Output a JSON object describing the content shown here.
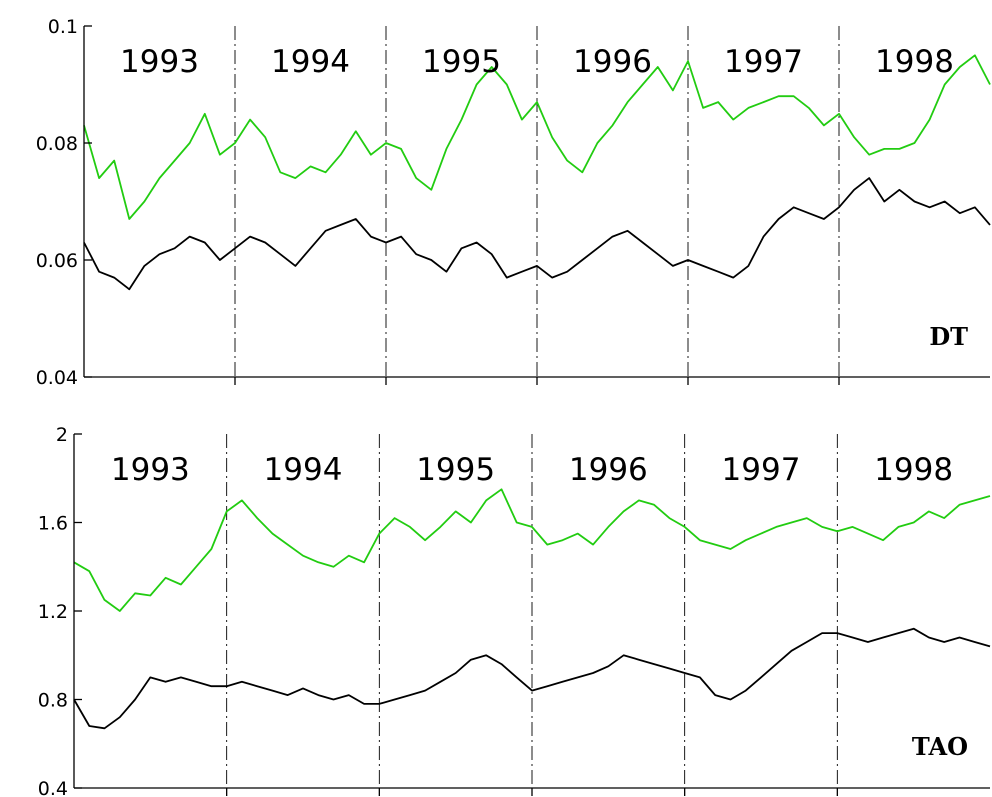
{
  "chart_data": [
    {
      "type": "line",
      "panel_label": "DT",
      "years": [
        "1993",
        "1994",
        "1995",
        "1996",
        "1997",
        "1998"
      ],
      "x_range": [
        1993,
        1999
      ],
      "year_dividers": [
        1994,
        1995,
        1996,
        1997,
        1998
      ],
      "ylim": [
        0.04,
        0.1
      ],
      "yticks": [
        0.04,
        0.06,
        0.08,
        0.1
      ],
      "ytick_labels": [
        "0.04",
        "0.06",
        "0.08",
        "0.1"
      ],
      "grid": false,
      "series": [
        {
          "color": "#22cc11",
          "x": [
            1993.0,
            1993.1,
            1993.2,
            1993.3,
            1993.4,
            1993.5,
            1993.6,
            1993.7,
            1993.8,
            1993.9,
            1994.0,
            1994.1,
            1994.2,
            1994.3,
            1994.4,
            1994.5,
            1994.6,
            1994.7,
            1994.8,
            1994.9,
            1995.0,
            1995.1,
            1995.2,
            1995.3,
            1995.4,
            1995.5,
            1995.6,
            1995.7,
            1995.8,
            1995.9,
            1996.0,
            1996.1,
            1996.2,
            1996.3,
            1996.4,
            1996.5,
            1996.6,
            1996.7,
            1996.8,
            1996.9,
            1997.0,
            1997.1,
            1997.2,
            1997.3,
            1997.4,
            1997.5,
            1997.6,
            1997.7,
            1997.8,
            1997.9,
            1998.0,
            1998.1,
            1998.2,
            1998.3,
            1998.4,
            1998.5,
            1998.6,
            1998.7,
            1998.8,
            1998.9,
            1999.0
          ],
          "y": [
            0.083,
            0.074,
            0.077,
            0.067,
            0.07,
            0.074,
            0.077,
            0.08,
            0.085,
            0.078,
            0.08,
            0.084,
            0.081,
            0.075,
            0.074,
            0.076,
            0.075,
            0.078,
            0.082,
            0.078,
            0.08,
            0.079,
            0.074,
            0.072,
            0.079,
            0.084,
            0.09,
            0.093,
            0.09,
            0.084,
            0.087,
            0.081,
            0.077,
            0.075,
            0.08,
            0.083,
            0.087,
            0.09,
            0.093,
            0.089,
            0.094,
            0.086,
            0.087,
            0.084,
            0.086,
            0.087,
            0.088,
            0.088,
            0.086,
            0.083,
            0.085,
            0.081,
            0.078,
            0.079,
            0.079,
            0.08,
            0.084,
            0.09,
            0.093,
            0.095,
            0.09
          ]
        },
        {
          "color": "#000000",
          "x": [
            1993.0,
            1993.1,
            1993.2,
            1993.3,
            1993.4,
            1993.5,
            1993.6,
            1993.7,
            1993.8,
            1993.9,
            1994.0,
            1994.1,
            1994.2,
            1994.3,
            1994.4,
            1994.5,
            1994.6,
            1994.7,
            1994.8,
            1994.9,
            1995.0,
            1995.1,
            1995.2,
            1995.3,
            1995.4,
            1995.5,
            1995.6,
            1995.7,
            1995.8,
            1995.9,
            1996.0,
            1996.1,
            1996.2,
            1996.3,
            1996.4,
            1996.5,
            1996.6,
            1996.7,
            1996.8,
            1996.9,
            1997.0,
            1997.1,
            1997.2,
            1997.3,
            1997.4,
            1997.5,
            1997.6,
            1997.7,
            1997.8,
            1997.9,
            1998.0,
            1998.1,
            1998.2,
            1998.3,
            1998.4,
            1998.5,
            1998.6,
            1998.7,
            1998.8,
            1998.9,
            1999.0
          ],
          "y": [
            0.063,
            0.058,
            0.057,
            0.055,
            0.059,
            0.061,
            0.062,
            0.064,
            0.063,
            0.06,
            0.062,
            0.064,
            0.063,
            0.061,
            0.059,
            0.062,
            0.065,
            0.066,
            0.067,
            0.064,
            0.063,
            0.064,
            0.061,
            0.06,
            0.058,
            0.062,
            0.063,
            0.061,
            0.057,
            0.058,
            0.059,
            0.057,
            0.058,
            0.06,
            0.062,
            0.064,
            0.065,
            0.063,
            0.061,
            0.059,
            0.06,
            0.059,
            0.058,
            0.057,
            0.059,
            0.064,
            0.067,
            0.069,
            0.068,
            0.067,
            0.069,
            0.072,
            0.074,
            0.07,
            0.072,
            0.07,
            0.069,
            0.07,
            0.068,
            0.069,
            0.066
          ]
        }
      ]
    },
    {
      "type": "line",
      "panel_label": "TAO",
      "years": [
        "1993",
        "1994",
        "1995",
        "1996",
        "1997",
        "1998"
      ],
      "x_range": [
        1993,
        1999
      ],
      "year_dividers": [
        1994,
        1995,
        1996,
        1997,
        1998
      ],
      "ylim": [
        0.4,
        2.0
      ],
      "yticks": [
        0.4,
        0.8,
        1.2,
        1.6,
        2.0
      ],
      "ytick_labels": [
        "0.4",
        "0.8",
        "1.2",
        "1.6",
        "2"
      ],
      "grid": false,
      "series": [
        {
          "color": "#22cc11",
          "x": [
            1993.0,
            1993.1,
            1993.2,
            1993.3,
            1993.4,
            1993.5,
            1993.6,
            1993.7,
            1993.8,
            1993.9,
            1994.0,
            1994.1,
            1994.2,
            1994.3,
            1994.4,
            1994.5,
            1994.6,
            1994.7,
            1994.8,
            1994.9,
            1995.0,
            1995.1,
            1995.2,
            1995.3,
            1995.4,
            1995.5,
            1995.6,
            1995.7,
            1995.8,
            1995.9,
            1996.0,
            1996.1,
            1996.2,
            1996.3,
            1996.4,
            1996.5,
            1996.6,
            1996.7,
            1996.8,
            1996.9,
            1997.0,
            1997.1,
            1997.2,
            1997.3,
            1997.4,
            1997.5,
            1997.6,
            1997.7,
            1997.8,
            1997.9,
            1998.0,
            1998.1,
            1998.2,
            1998.3,
            1998.4,
            1998.5,
            1998.6,
            1998.7,
            1998.8,
            1998.9,
            1999.0
          ],
          "y": [
            1.42,
            1.38,
            1.25,
            1.2,
            1.28,
            1.27,
            1.35,
            1.32,
            1.4,
            1.48,
            1.65,
            1.7,
            1.62,
            1.55,
            1.5,
            1.45,
            1.42,
            1.4,
            1.45,
            1.42,
            1.55,
            1.62,
            1.58,
            1.52,
            1.58,
            1.65,
            1.6,
            1.7,
            1.75,
            1.6,
            1.58,
            1.5,
            1.52,
            1.55,
            1.5,
            1.58,
            1.65,
            1.7,
            1.68,
            1.62,
            1.58,
            1.52,
            1.5,
            1.48,
            1.52,
            1.55,
            1.58,
            1.6,
            1.62,
            1.58,
            1.56,
            1.58,
            1.55,
            1.52,
            1.58,
            1.6,
            1.65,
            1.62,
            1.68,
            1.7,
            1.72
          ]
        },
        {
          "color": "#000000",
          "x": [
            1993.0,
            1993.1,
            1993.2,
            1993.3,
            1993.4,
            1993.5,
            1993.6,
            1993.7,
            1993.8,
            1993.9,
            1994.0,
            1994.1,
            1994.2,
            1994.3,
            1994.4,
            1994.5,
            1994.6,
            1994.7,
            1994.8,
            1994.9,
            1995.0,
            1995.1,
            1995.2,
            1995.3,
            1995.4,
            1995.5,
            1995.6,
            1995.7,
            1995.8,
            1995.9,
            1996.0,
            1996.1,
            1996.2,
            1996.3,
            1996.4,
            1996.5,
            1996.6,
            1996.7,
            1996.8,
            1996.9,
            1997.0,
            1997.1,
            1997.2,
            1997.3,
            1997.4,
            1997.5,
            1997.6,
            1997.7,
            1997.8,
            1997.9,
            1998.0,
            1998.1,
            1998.2,
            1998.3,
            1998.4,
            1998.5,
            1998.6,
            1998.7,
            1998.8,
            1998.9,
            1999.0
          ],
          "y": [
            0.8,
            0.68,
            0.67,
            0.72,
            0.8,
            0.9,
            0.88,
            0.9,
            0.88,
            0.86,
            0.86,
            0.88,
            0.86,
            0.84,
            0.82,
            0.85,
            0.82,
            0.8,
            0.82,
            0.78,
            0.78,
            0.8,
            0.82,
            0.84,
            0.88,
            0.92,
            0.98,
            1.0,
            0.96,
            0.9,
            0.84,
            0.86,
            0.88,
            0.9,
            0.92,
            0.95,
            1.0,
            0.98,
            0.96,
            0.94,
            0.92,
            0.9,
            0.82,
            0.8,
            0.84,
            0.9,
            0.96,
            1.02,
            1.06,
            1.1,
            1.1,
            1.08,
            1.06,
            1.08,
            1.1,
            1.12,
            1.08,
            1.06,
            1.08,
            1.06,
            1.04
          ]
        }
      ]
    }
  ]
}
